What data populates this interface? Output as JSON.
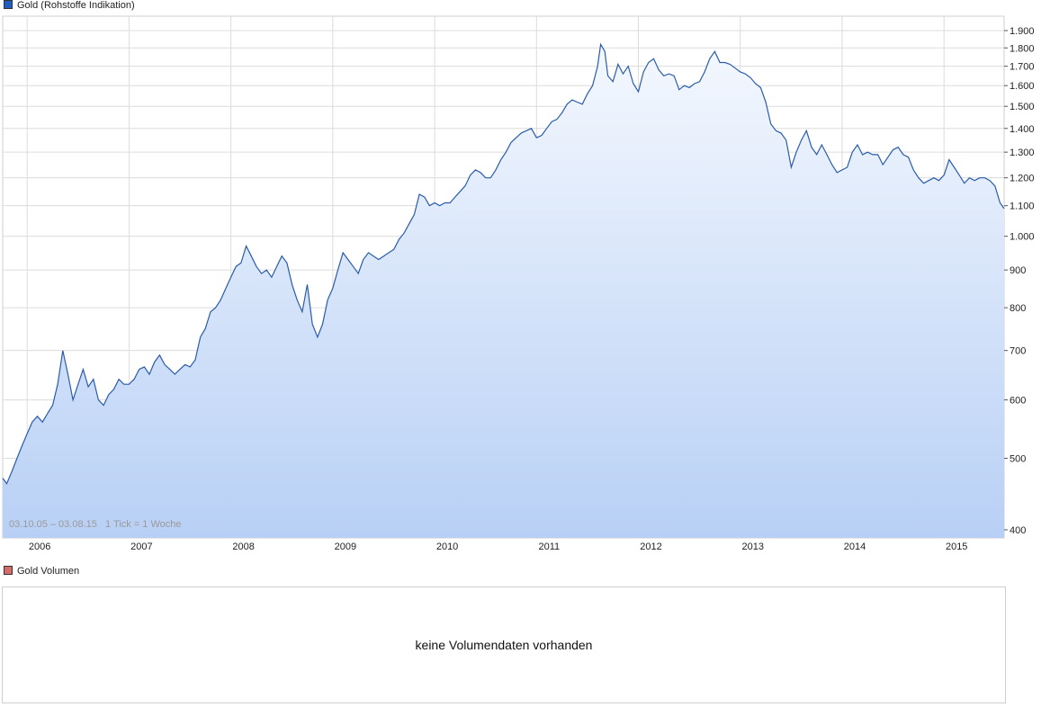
{
  "legend": {
    "main_label": "Gold (Rohstoffe Indikation)",
    "main_color": "#1f5fbf",
    "volume_label": "Gold Volumen",
    "volume_color": "#d96a6a"
  },
  "range_text": "03.10.05 – 03.08.15   1 Tick = 1 Woche",
  "volume": {
    "message": "keine Volumendaten vorhanden"
  },
  "colors": {
    "line": "#2a5cab",
    "fill_top": "#f4f8fe",
    "fill_bottom": "#b8d0f5",
    "grid": "#dcdcdc"
  },
  "chart_data": {
    "type": "area",
    "title": "Gold (Rohstoffe Indikation)",
    "x_labels": [
      "2006",
      "2007",
      "2008",
      "2009",
      "2010",
      "2011",
      "2012",
      "2013",
      "2014",
      "2015"
    ],
    "x_range": [
      2005.76,
      2015.59
    ],
    "y_scale": "log",
    "y_ticks": [
      400,
      500,
      600,
      700,
      800,
      900,
      1000,
      1100,
      1200,
      1300,
      1400,
      1500,
      1600,
      1700,
      1800,
      1900
    ],
    "y_tick_labels": [
      "400",
      "500",
      "600",
      "700",
      "800",
      "900",
      "1.000",
      "1.100",
      "1.200",
      "1.300",
      "1.400",
      "1.500",
      "1.600",
      "1.700",
      "1.800",
      "1.900"
    ],
    "ylim": [
      392,
      2000
    ],
    "grid": true,
    "series": [
      {
        "name": "Gold (Rohstoffe Indikation)",
        "points": [
          [
            2005.76,
            470
          ],
          [
            2005.8,
            462
          ],
          [
            2005.85,
            480
          ],
          [
            2005.9,
            500
          ],
          [
            2005.95,
            520
          ],
          [
            2006.0,
            540
          ],
          [
            2006.05,
            560
          ],
          [
            2006.1,
            570
          ],
          [
            2006.15,
            560
          ],
          [
            2006.2,
            575
          ],
          [
            2006.25,
            590
          ],
          [
            2006.3,
            630
          ],
          [
            2006.35,
            700
          ],
          [
            2006.4,
            650
          ],
          [
            2006.45,
            600
          ],
          [
            2006.5,
            630
          ],
          [
            2006.55,
            660
          ],
          [
            2006.6,
            625
          ],
          [
            2006.65,
            640
          ],
          [
            2006.7,
            600
          ],
          [
            2006.75,
            590
          ],
          [
            2006.8,
            610
          ],
          [
            2006.85,
            620
          ],
          [
            2006.9,
            640
          ],
          [
            2006.95,
            630
          ],
          [
            2007.0,
            630
          ],
          [
            2007.05,
            640
          ],
          [
            2007.1,
            660
          ],
          [
            2007.15,
            665
          ],
          [
            2007.2,
            650
          ],
          [
            2007.25,
            675
          ],
          [
            2007.3,
            690
          ],
          [
            2007.35,
            670
          ],
          [
            2007.4,
            660
          ],
          [
            2007.45,
            650
          ],
          [
            2007.5,
            660
          ],
          [
            2007.55,
            670
          ],
          [
            2007.6,
            665
          ],
          [
            2007.65,
            680
          ],
          [
            2007.7,
            730
          ],
          [
            2007.75,
            750
          ],
          [
            2007.8,
            790
          ],
          [
            2007.85,
            800
          ],
          [
            2007.9,
            820
          ],
          [
            2007.95,
            850
          ],
          [
            2008.0,
            880
          ],
          [
            2008.05,
            910
          ],
          [
            2008.1,
            920
          ],
          [
            2008.15,
            970
          ],
          [
            2008.2,
            940
          ],
          [
            2008.25,
            910
          ],
          [
            2008.3,
            890
          ],
          [
            2008.35,
            900
          ],
          [
            2008.4,
            880
          ],
          [
            2008.45,
            910
          ],
          [
            2008.5,
            940
          ],
          [
            2008.55,
            920
          ],
          [
            2008.6,
            860
          ],
          [
            2008.65,
            820
          ],
          [
            2008.7,
            790
          ],
          [
            2008.75,
            860
          ],
          [
            2008.8,
            760
          ],
          [
            2008.85,
            730
          ],
          [
            2008.9,
            760
          ],
          [
            2008.95,
            820
          ],
          [
            2009.0,
            850
          ],
          [
            2009.05,
            900
          ],
          [
            2009.1,
            950
          ],
          [
            2009.15,
            930
          ],
          [
            2009.2,
            910
          ],
          [
            2009.25,
            890
          ],
          [
            2009.3,
            930
          ],
          [
            2009.35,
            950
          ],
          [
            2009.4,
            940
          ],
          [
            2009.45,
            930
          ],
          [
            2009.5,
            940
          ],
          [
            2009.55,
            950
          ],
          [
            2009.6,
            960
          ],
          [
            2009.65,
            990
          ],
          [
            2009.7,
            1010
          ],
          [
            2009.75,
            1040
          ],
          [
            2009.8,
            1070
          ],
          [
            2009.85,
            1140
          ],
          [
            2009.9,
            1130
          ],
          [
            2009.95,
            1100
          ],
          [
            2010.0,
            1110
          ],
          [
            2010.05,
            1100
          ],
          [
            2010.1,
            1110
          ],
          [
            2010.15,
            1110
          ],
          [
            2010.2,
            1130
          ],
          [
            2010.25,
            1150
          ],
          [
            2010.3,
            1170
          ],
          [
            2010.35,
            1210
          ],
          [
            2010.4,
            1230
          ],
          [
            2010.45,
            1220
          ],
          [
            2010.5,
            1200
          ],
          [
            2010.55,
            1200
          ],
          [
            2010.6,
            1230
          ],
          [
            2010.65,
            1270
          ],
          [
            2010.7,
            1300
          ],
          [
            2010.75,
            1340
          ],
          [
            2010.8,
            1360
          ],
          [
            2010.85,
            1380
          ],
          [
            2010.9,
            1390
          ],
          [
            2010.95,
            1400
          ],
          [
            2011.0,
            1360
          ],
          [
            2011.05,
            1370
          ],
          [
            2011.1,
            1400
          ],
          [
            2011.15,
            1430
          ],
          [
            2011.2,
            1440
          ],
          [
            2011.25,
            1470
          ],
          [
            2011.3,
            1510
          ],
          [
            2011.35,
            1530
          ],
          [
            2011.4,
            1520
          ],
          [
            2011.45,
            1510
          ],
          [
            2011.5,
            1560
          ],
          [
            2011.55,
            1600
          ],
          [
            2011.6,
            1700
          ],
          [
            2011.63,
            1820
          ],
          [
            2011.67,
            1780
          ],
          [
            2011.7,
            1650
          ],
          [
            2011.75,
            1620
          ],
          [
            2011.8,
            1710
          ],
          [
            2011.85,
            1660
          ],
          [
            2011.9,
            1700
          ],
          [
            2011.95,
            1610
          ],
          [
            2012.0,
            1570
          ],
          [
            2012.05,
            1670
          ],
          [
            2012.1,
            1720
          ],
          [
            2012.15,
            1740
          ],
          [
            2012.2,
            1680
          ],
          [
            2012.25,
            1650
          ],
          [
            2012.3,
            1660
          ],
          [
            2012.35,
            1650
          ],
          [
            2012.4,
            1580
          ],
          [
            2012.45,
            1600
          ],
          [
            2012.5,
            1590
          ],
          [
            2012.55,
            1610
          ],
          [
            2012.6,
            1620
          ],
          [
            2012.65,
            1670
          ],
          [
            2012.7,
            1740
          ],
          [
            2012.75,
            1780
          ],
          [
            2012.8,
            1720
          ],
          [
            2012.85,
            1720
          ],
          [
            2012.9,
            1710
          ],
          [
            2012.95,
            1690
          ],
          [
            2013.0,
            1670
          ],
          [
            2013.05,
            1660
          ],
          [
            2013.1,
            1640
          ],
          [
            2013.15,
            1610
          ],
          [
            2013.2,
            1590
          ],
          [
            2013.25,
            1520
          ],
          [
            2013.3,
            1420
          ],
          [
            2013.35,
            1390
          ],
          [
            2013.4,
            1380
          ],
          [
            2013.45,
            1350
          ],
          [
            2013.5,
            1240
          ],
          [
            2013.55,
            1300
          ],
          [
            2013.6,
            1350
          ],
          [
            2013.65,
            1390
          ],
          [
            2013.7,
            1320
          ],
          [
            2013.75,
            1290
          ],
          [
            2013.8,
            1330
          ],
          [
            2013.85,
            1290
          ],
          [
            2013.9,
            1250
          ],
          [
            2013.95,
            1220
          ],
          [
            2014.0,
            1230
          ],
          [
            2014.05,
            1240
          ],
          [
            2014.1,
            1300
          ],
          [
            2014.15,
            1330
          ],
          [
            2014.2,
            1290
          ],
          [
            2014.25,
            1300
          ],
          [
            2014.3,
            1290
          ],
          [
            2014.35,
            1290
          ],
          [
            2014.4,
            1250
          ],
          [
            2014.45,
            1280
          ],
          [
            2014.5,
            1310
          ],
          [
            2014.55,
            1320
          ],
          [
            2014.6,
            1290
          ],
          [
            2014.65,
            1280
          ],
          [
            2014.7,
            1230
          ],
          [
            2014.75,
            1200
          ],
          [
            2014.8,
            1180
          ],
          [
            2014.85,
            1190
          ],
          [
            2014.9,
            1200
          ],
          [
            2014.95,
            1190
          ],
          [
            2015.0,
            1210
          ],
          [
            2015.05,
            1270
          ],
          [
            2015.1,
            1240
          ],
          [
            2015.15,
            1210
          ],
          [
            2015.2,
            1180
          ],
          [
            2015.25,
            1200
          ],
          [
            2015.3,
            1190
          ],
          [
            2015.35,
            1200
          ],
          [
            2015.4,
            1200
          ],
          [
            2015.45,
            1190
          ],
          [
            2015.5,
            1170
          ],
          [
            2015.55,
            1110
          ],
          [
            2015.59,
            1090
          ]
        ]
      }
    ]
  }
}
